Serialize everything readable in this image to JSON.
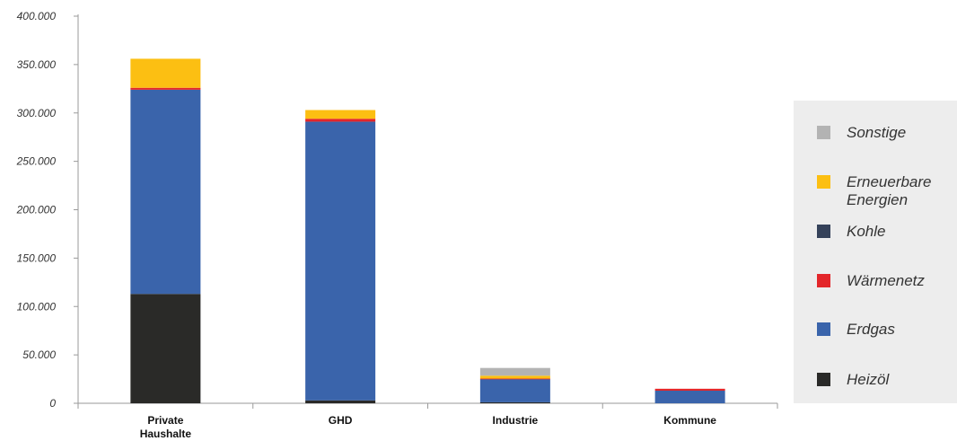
{
  "chart_data": {
    "type": "bar",
    "stacked": true,
    "categories": [
      "Private Haushalte",
      "GHD",
      "Industrie",
      "Kommune"
    ],
    "category_labels": [
      [
        "Private",
        "Haushalte"
      ],
      [
        "GHD"
      ],
      [
        "Industrie"
      ],
      [
        "Kommune"
      ]
    ],
    "ylim": [
      0,
      400000
    ],
    "yticks": [
      0,
      50000,
      100000,
      150000,
      200000,
      250000,
      300000,
      350000,
      400000
    ],
    "ytick_labels": [
      "0",
      "50.000",
      "100.000",
      "150.000",
      "200.000",
      "250.000",
      "300.000",
      "350.000",
      "400.000"
    ],
    "grid": false,
    "legend_position": "right",
    "series": [
      {
        "name": "Heizöl",
        "color": "#2a2a28",
        "values": [
          113000,
          3000,
          1000,
          0
        ]
      },
      {
        "name": "Erdgas",
        "color": "#3a64ab",
        "values": [
          211000,
          288000,
          24000,
          13000
        ]
      },
      {
        "name": "Wärmenetz",
        "color": "#e3262a",
        "values": [
          2000,
          3000,
          500,
          2000
        ]
      },
      {
        "name": "Kohle",
        "color": "#35425a",
        "values": [
          0,
          0,
          0,
          0
        ]
      },
      {
        "name": "Erneuerbare Energien",
        "color": "#fcbf12",
        "values": [
          30000,
          9000,
          3000,
          0
        ]
      },
      {
        "name": "Sonstige",
        "color": "#b3b3b3",
        "values": [
          0,
          0,
          8000,
          0
        ]
      }
    ],
    "legend_order": [
      "Sonstige",
      "Erneuerbare Energien",
      "Kohle",
      "Wärmenetz",
      "Erdgas",
      "Heizöl"
    ],
    "legend_labels": {
      "Sonstige": [
        "Sonstige"
      ],
      "Erneuerbare Energien": [
        "Erneuerbare",
        "Energien"
      ],
      "Kohle": [
        "Kohle"
      ],
      "Wärmenetz": [
        "Wärmenetz"
      ],
      "Erdgas": [
        "Erdgas"
      ],
      "Heizöl": [
        "Heizöl"
      ]
    }
  }
}
